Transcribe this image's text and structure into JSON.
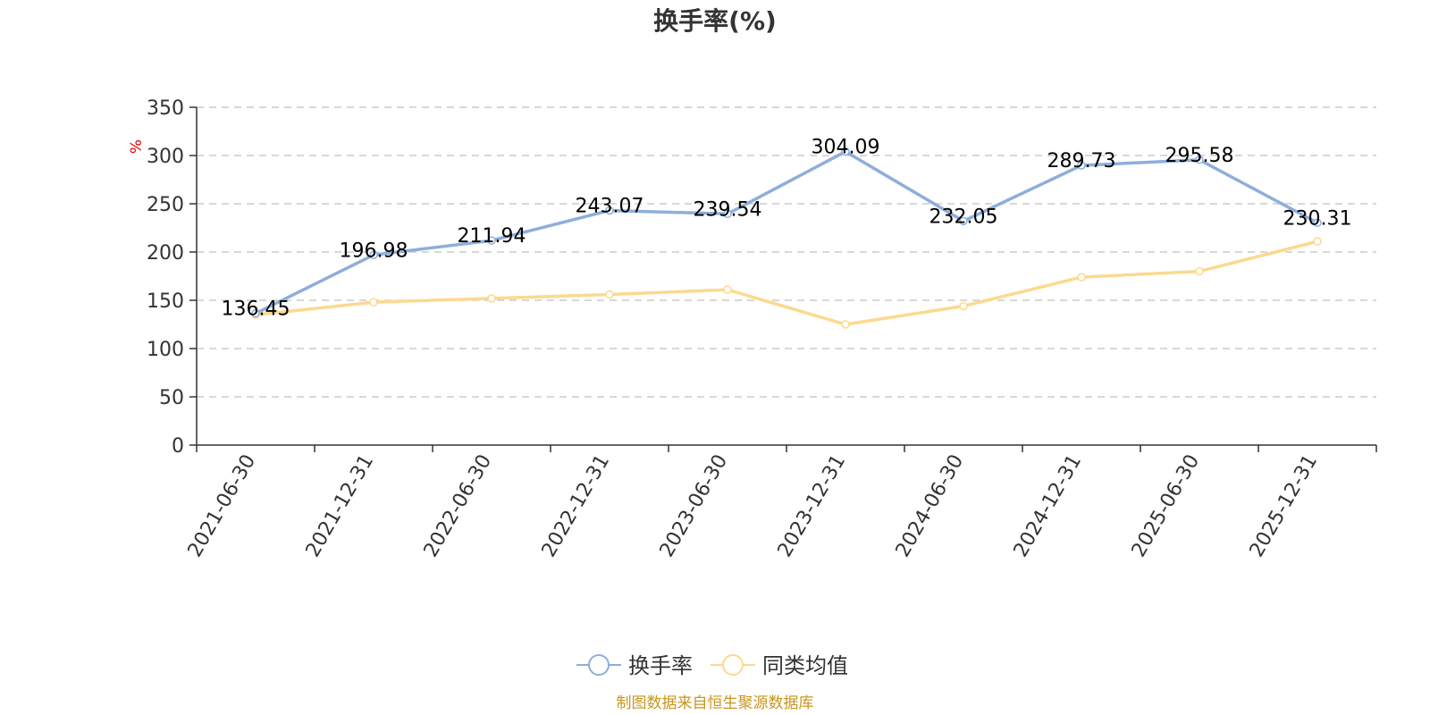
{
  "chart_data": {
    "type": "line",
    "title": "换手率(%)",
    "ylabel": "%",
    "xlabel": "",
    "ylim": [
      0,
      350
    ],
    "yticks": [
      0,
      50,
      100,
      150,
      200,
      250,
      300,
      350
    ],
    "categories": [
      "2021-06-30",
      "2021-12-31",
      "2022-06-30",
      "2022-12-31",
      "2023-06-30",
      "2023-12-31",
      "2024-06-30",
      "2024-12-31",
      "2025-06-30",
      "2025-12-31"
    ],
    "series": [
      {
        "name": "换手率",
        "color": "#8eaedb",
        "values": [
          136.45,
          196.98,
          211.94,
          243.07,
          239.54,
          304.09,
          232.05,
          289.73,
          295.58,
          230.31
        ],
        "labels": [
          "136.45",
          "196.98",
          "211.94",
          "243.07",
          "239.54",
          "304.09",
          "232.05",
          "289.73",
          "295.58",
          "230.31"
        ]
      },
      {
        "name": "同类均值",
        "color": "#fcd98f",
        "values": [
          135,
          148,
          152,
          156,
          161,
          125,
          144,
          174,
          180,
          211
        ]
      }
    ],
    "grid": "horizontal-dashed",
    "legend": "bottom-center"
  },
  "source_text": "制图数据来自恒生聚源数据库"
}
